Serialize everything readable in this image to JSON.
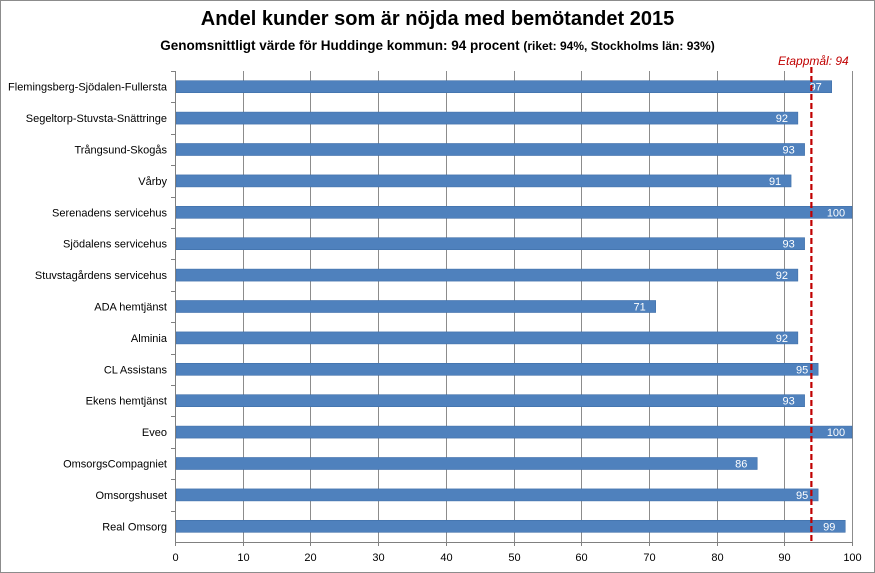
{
  "chart_data": {
    "type": "bar",
    "orientation": "horizontal",
    "title": "Andel kunder som är nöjda med bemötandet 2015",
    "subtitle": "Genomsnittligt värde för Huddinge kommun: 94 procent",
    "subtitle_note": "(riket: 94%, Stockholms län: 93%)",
    "categories": [
      "Flemingsberg-Sjödalen-Fullersta",
      "Segeltorp-Stuvsta-Snättringe",
      "Trångsund-Skogås",
      "Vårby",
      "Serenadens servicehus",
      "Sjödalens servicehus",
      "Stuvstagårdens servicehus",
      "ADA hemtjänst",
      "Alminia",
      "CL Assistans",
      "Ekens hemtjänst",
      "Eveo",
      "OmsorgsCompagniet",
      "Omsorgshuset",
      "Real Omsorg"
    ],
    "values": [
      97,
      92,
      93,
      91,
      100,
      93,
      92,
      71,
      92,
      95,
      93,
      100,
      86,
      95,
      99
    ],
    "xlim": [
      0,
      100
    ],
    "xticks": [
      0,
      10,
      20,
      30,
      40,
      50,
      60,
      70,
      80,
      90,
      100
    ],
    "grid": true,
    "target": {
      "label": "Etappmål: 94",
      "value": 94
    },
    "colors": {
      "bar": "#4f81bd",
      "bar_border": "#3f6fa8",
      "target": "#c00000",
      "grid": "#8c8c8c"
    }
  }
}
